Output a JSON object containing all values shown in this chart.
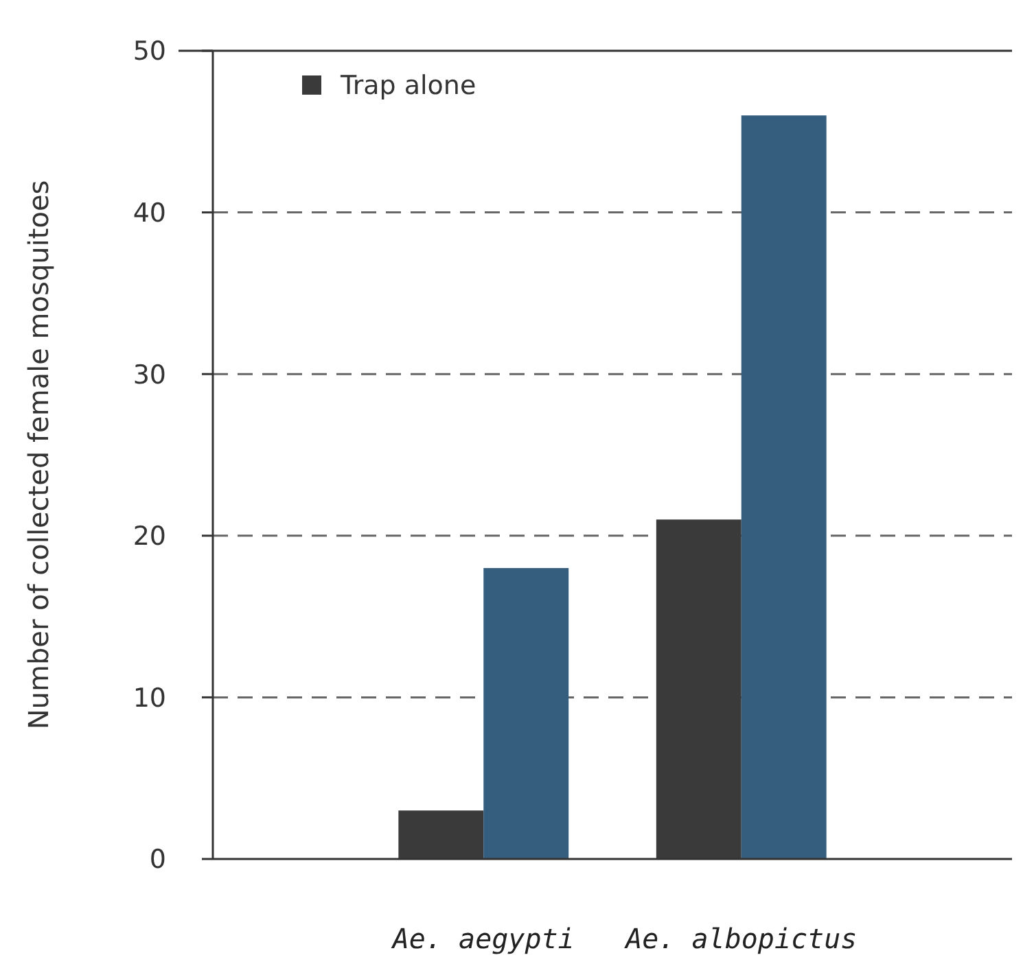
{
  "chart_data": {
    "type": "bar",
    "ylabel": "Number of collected female mosquitoes",
    "categories": [
      "Ae. aegypti",
      "Ae. albopictus"
    ],
    "series": [
      {
        "name": "Trap alone",
        "color": "#3a3a3a",
        "values": [
          3,
          21
        ]
      },
      {
        "color": "#345d7e",
        "values": [
          18,
          46
        ]
      }
    ],
    "ylim": [
      0,
      50
    ],
    "yticks": [
      0,
      10,
      20,
      30,
      40,
      50
    ],
    "grid": "y",
    "legend": "top left"
  }
}
